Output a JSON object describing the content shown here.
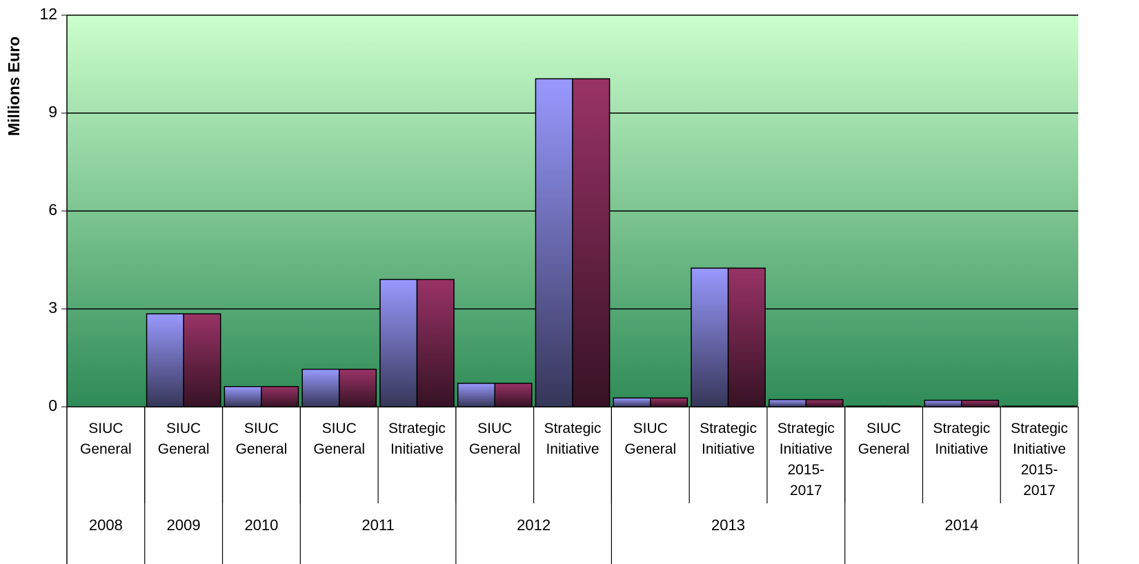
{
  "chart_data": {
    "type": "bar",
    "y_label": "Millions Euro",
    "categories": [
      "SIUC General",
      "SIUC General",
      "SIUC General",
      "SIUC General",
      "Strategic Initiative",
      "SIUC General",
      "Strategic Initiative",
      "SIUC General",
      "Strategic Initiative",
      "Strategic Initiative 2015- 2017",
      "SIUC General",
      "Strategic Initiative",
      "Strategic Initiative 2015- 2017"
    ],
    "groups": [
      {
        "label": "2008",
        "count": 1
      },
      {
        "label": "2009",
        "count": 1
      },
      {
        "label": "2010",
        "count": 1
      },
      {
        "label": "2011",
        "count": 2
      },
      {
        "label": "2012",
        "count": 2
      },
      {
        "label": "2013",
        "count": 3
      },
      {
        "label": "2014",
        "count": 3
      }
    ],
    "series": [
      {
        "color": "#9999ff",
        "values": [
          0,
          2.85,
          0.62,
          1.15,
          3.9,
          0.72,
          10.05,
          0.27,
          4.25,
          0.22,
          0.02,
          0.2,
          0.02
        ]
      },
      {
        "color": "#993366",
        "values": [
          0,
          2.85,
          0.62,
          1.15,
          3.9,
          0.72,
          10.05,
          0.27,
          4.25,
          0.22,
          0.02,
          0.2,
          0.02
        ]
      }
    ],
    "ylim": [
      0,
      12
    ],
    "yticks": [
      0,
      3,
      6,
      9,
      12
    ],
    "grid": true
  }
}
